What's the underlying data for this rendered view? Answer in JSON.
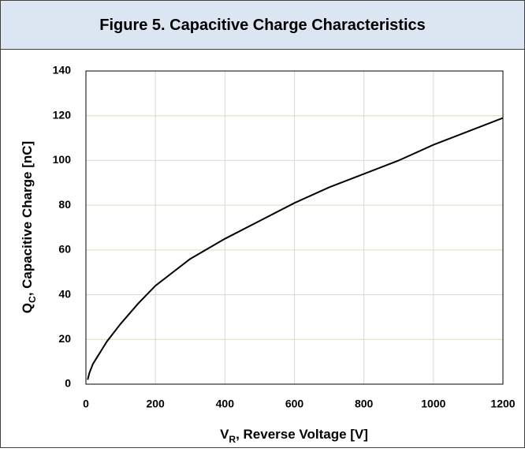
{
  "chart_data": {
    "type": "line",
    "title": "Figure 5. Capacitive Charge Characteristics",
    "x_label": {
      "main": "V",
      "sub": "R",
      "rest": ", Reverse Voltage [V]"
    },
    "y_label": {
      "main": "Q",
      "sub": "C",
      "rest": ", Capacitive Charge [nC]"
    },
    "x": [
      5,
      10,
      20,
      40,
      60,
      80,
      100,
      150,
      200,
      300,
      400,
      500,
      600,
      700,
      800,
      900,
      1000,
      1100,
      1200
    ],
    "series": [
      {
        "color": "#000000",
        "values": [
          2,
          5,
          9,
          14,
          19,
          23,
          27,
          36,
          44,
          56,
          65,
          73,
          81,
          88,
          94,
          100,
          107,
          113,
          119
        ]
      }
    ],
    "xlim": [
      0,
      1200
    ],
    "xticks": [
      0,
      200,
      400,
      600,
      800,
      1000,
      1200
    ],
    "ylim": [
      0,
      140
    ],
    "yticks": [
      0,
      20,
      40,
      60,
      80,
      100,
      120,
      140
    ],
    "grid": true
  }
}
